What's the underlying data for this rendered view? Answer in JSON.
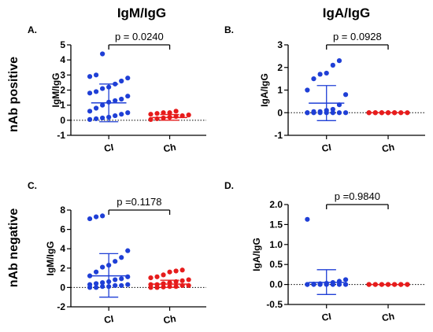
{
  "column_titles": [
    "IgM/IgG",
    "IgA/IgG"
  ],
  "row_titles": [
    "nAb positive",
    "nAb negative"
  ],
  "colors": {
    "CI": "#1f3fd6",
    "Ch": "#e61c1c",
    "axis": "#000000"
  },
  "chart_data": [
    {
      "type": "scatter",
      "panel_label": "A.",
      "ylabel": "IgM/IgG",
      "categories": [
        "CI",
        "Ch"
      ],
      "ylim": [
        -1,
        5
      ],
      "yticks": [
        -1,
        0,
        1,
        2,
        3,
        4,
        5
      ],
      "y_tick_labels": [
        "-1",
        "0",
        "1",
        "2",
        "3",
        "4",
        "5"
      ],
      "reference_line": 0,
      "p_text": "p = 0.0240",
      "series": [
        {
          "category": "CI",
          "mean": 1.15,
          "sd_low": -0.1,
          "sd_high": 2.4,
          "points": [
            4.4,
            3.0,
            2.9,
            2.8,
            2.6,
            2.4,
            2.2,
            2.1,
            1.9,
            1.8,
            1.6,
            1.4,
            1.3,
            1.2,
            1.0,
            0.8,
            0.6,
            0.5,
            0.4,
            0.3,
            0.2,
            0.15,
            0.1,
            0.05
          ]
        },
        {
          "category": "Ch",
          "mean": 0.18,
          "sd_low": 0.0,
          "sd_high": 0.38,
          "points": [
            0.6,
            0.5,
            0.5,
            0.45,
            0.4,
            0.35,
            0.3,
            0.25,
            0.2,
            0.15,
            0.1,
            0.05
          ]
        }
      ]
    },
    {
      "type": "scatter",
      "panel_label": "B.",
      "ylabel": "IgA/IgG",
      "categories": [
        "CI",
        "Ch"
      ],
      "ylim": [
        -1,
        3
      ],
      "yticks": [
        -1,
        0,
        1,
        2,
        3
      ],
      "y_tick_labels": [
        "-1",
        "0",
        "1",
        "2",
        "3"
      ],
      "reference_line": 0,
      "p_text": "p = 0.0928",
      "series": [
        {
          "category": "CI",
          "mean": 0.42,
          "sd_low": -0.35,
          "sd_high": 1.2,
          "points": [
            2.3,
            2.1,
            1.75,
            1.7,
            1.5,
            1.0,
            0.8,
            0.35,
            0.15,
            0.1,
            0.05,
            0.05,
            0.0,
            0.0,
            0.0,
            0.0,
            0.0,
            0.0,
            0.0,
            0.0
          ]
        },
        {
          "category": "Ch",
          "mean": 0.0,
          "sd_low": 0.0,
          "sd_high": 0.0,
          "points": [
            0,
            0,
            0,
            0,
            0,
            0,
            0,
            0,
            0,
            0,
            0,
            0
          ]
        }
      ]
    },
    {
      "type": "scatter",
      "panel_label": "C.",
      "ylabel": "IgM/IgG",
      "categories": [
        "CI",
        "Ch"
      ],
      "ylim": [
        -2,
        8
      ],
      "yticks": [
        -2,
        0,
        2,
        4,
        6,
        8
      ],
      "y_tick_labels": [
        "-2",
        "0",
        "2",
        "4",
        "6",
        "8"
      ],
      "reference_line": 0,
      "p_text": "p =0.1178",
      "series": [
        {
          "category": "CI",
          "mean": 1.2,
          "sd_low": -1.0,
          "sd_high": 3.5,
          "points": [
            7.4,
            7.3,
            7.1,
            3.8,
            3.1,
            2.7,
            2.3,
            2.1,
            1.6,
            1.2,
            1.1,
            0.9,
            0.8,
            0.6,
            0.5,
            0.4,
            0.3,
            0.3,
            0.2,
            0.2,
            0.1,
            0.1,
            0.0,
            0.0
          ]
        },
        {
          "category": "Ch",
          "mean": 0.35,
          "sd_low": 0.0,
          "sd_high": 0.75,
          "points": [
            1.8,
            1.7,
            1.6,
            1.3,
            1.1,
            1.0,
            0.8,
            0.7,
            0.6,
            0.5,
            0.4,
            0.3,
            0.3,
            0.2,
            0.2,
            0.1,
            0.1,
            0.05,
            0.0,
            0.0
          ]
        }
      ]
    },
    {
      "type": "scatter",
      "panel_label": "D.",
      "ylabel": "IgA/IgG",
      "categories": [
        "CI",
        "Ch"
      ],
      "ylim": [
        -0.5,
        2.0
      ],
      "yticks": [
        -0.5,
        0.0,
        0.5,
        1.0,
        1.5,
        2.0
      ],
      "y_tick_labels": [
        "-0.5",
        "0.0",
        "0.5",
        "1.0",
        "1.5",
        "2.0"
      ],
      "reference_line": 0,
      "p_text": "p =0.9840",
      "series": [
        {
          "category": "CI",
          "mean": 0.05,
          "sd_low": -0.25,
          "sd_high": 0.37,
          "points": [
            1.63,
            0.12,
            0.08,
            0.05,
            0.03,
            0.02,
            0.01,
            0.0,
            0.0,
            0.0,
            0.0,
            0.0,
            0.0,
            0.0,
            0.0
          ]
        },
        {
          "category": "Ch",
          "mean": 0.0,
          "sd_low": 0.0,
          "sd_high": 0.0,
          "points": [
            0,
            0,
            0,
            0,
            0,
            0,
            0,
            0,
            0,
            0,
            0,
            0,
            0,
            0
          ]
        }
      ]
    }
  ]
}
